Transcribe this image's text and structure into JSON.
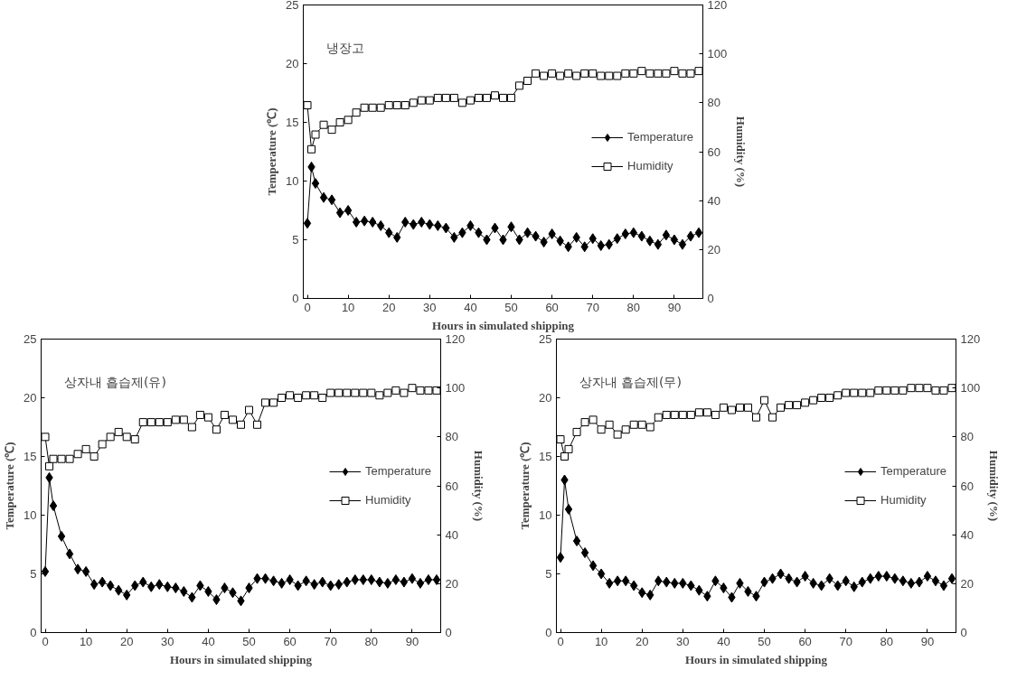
{
  "chart_data": [
    {
      "type": "line",
      "annotations": [
        "냉장고"
      ],
      "xlabel": "Hours in simulated shipping",
      "ylabel": "Temperature (℃)",
      "y2label": "Humidity (%)",
      "x": [
        0,
        1,
        2,
        4,
        6,
        8,
        10,
        12,
        14,
        16,
        18,
        20,
        22,
        24,
        26,
        28,
        30,
        32,
        34,
        36,
        38,
        40,
        42,
        44,
        46,
        48,
        50,
        52,
        54,
        56,
        58,
        60,
        62,
        64,
        66,
        68,
        70,
        72,
        74,
        76,
        78,
        80,
        82,
        84,
        86,
        88,
        90,
        92,
        94,
        96
      ],
      "xlim": [
        -1,
        97
      ],
      "xticks": [
        0,
        10,
        20,
        30,
        40,
        50,
        60,
        70,
        80,
        90
      ],
      "ylim": [
        0,
        25
      ],
      "yticks": [
        0,
        5,
        10,
        15,
        20,
        25
      ],
      "y2lim": [
        0,
        120
      ],
      "y2ticks": [
        0,
        20,
        40,
        60,
        80,
        100,
        120
      ],
      "grid": false,
      "legend": "right",
      "series": [
        {
          "name": "Temperature",
          "color": "#000000",
          "marker": "diamond",
          "values": [
            6.4,
            11.2,
            9.8,
            8.6,
            8.4,
            7.3,
            7.5,
            6.5,
            6.6,
            6.5,
            6.2,
            5.6,
            5.2,
            6.5,
            6.3,
            6.5,
            6.3,
            6.2,
            6.0,
            5.2,
            5.6,
            6.2,
            5.6,
            5.0,
            6.0,
            5.0,
            6.1,
            5.0,
            5.6,
            5.3,
            4.8,
            5.5,
            4.9,
            4.4,
            5.2,
            4.4,
            5.1,
            4.5,
            4.6,
            5.1,
            5.5,
            5.6,
            5.3,
            4.9,
            4.6,
            5.4,
            5.0,
            4.6,
            5.3,
            5.6
          ]
        },
        {
          "name": "Humidity",
          "color": "#000000",
          "marker": "square",
          "axis": "y2",
          "values": [
            79,
            61,
            67,
            71,
            69,
            72,
            73,
            76,
            78,
            78,
            78,
            79,
            79,
            79,
            80,
            81,
            81,
            82,
            82,
            82,
            80,
            81,
            82,
            82,
            83,
            82,
            82,
            87,
            89,
            92,
            91,
            92,
            91,
            92,
            91,
            92,
            92,
            91,
            91,
            91,
            92,
            92,
            93,
            92,
            92,
            92,
            93,
            92,
            92,
            93
          ]
        }
      ]
    },
    {
      "type": "line",
      "annotations": [
        "상자내 흡습제(유)"
      ],
      "xlabel": "Hours in simulated shipping",
      "ylabel": "Temperature (℃)",
      "y2label": "Humidity (%)",
      "x": [
        0,
        1,
        2,
        4,
        6,
        8,
        10,
        12,
        14,
        16,
        18,
        20,
        22,
        24,
        26,
        28,
        30,
        32,
        34,
        36,
        38,
        40,
        42,
        44,
        46,
        48,
        50,
        52,
        54,
        56,
        58,
        60,
        62,
        64,
        66,
        68,
        70,
        72,
        74,
        76,
        78,
        80,
        82,
        84,
        86,
        88,
        90,
        92,
        94,
        96
      ],
      "xlim": [
        -1,
        97
      ],
      "xticks": [
        0,
        10,
        20,
        30,
        40,
        50,
        60,
        70,
        80,
        90
      ],
      "ylim": [
        0,
        25
      ],
      "yticks": [
        0,
        5,
        10,
        15,
        20,
        25
      ],
      "y2lim": [
        0,
        120
      ],
      "y2ticks": [
        0,
        20,
        40,
        60,
        80,
        100,
        120
      ],
      "grid": false,
      "legend": "right",
      "series": [
        {
          "name": "Temperature",
          "color": "#000000",
          "marker": "diamond",
          "values": [
            5.2,
            13.2,
            10.8,
            8.2,
            6.7,
            5.4,
            5.2,
            4.1,
            4.3,
            4.0,
            3.6,
            3.2,
            4.0,
            4.3,
            3.9,
            4.1,
            3.9,
            3.8,
            3.5,
            3.0,
            4.0,
            3.5,
            2.8,
            3.8,
            3.4,
            2.7,
            3.8,
            4.6,
            4.6,
            4.4,
            4.2,
            4.5,
            4.0,
            4.4,
            4.1,
            4.3,
            4.0,
            4.1,
            4.3,
            4.5,
            4.5,
            4.5,
            4.3,
            4.2,
            4.5,
            4.3,
            4.6,
            4.2,
            4.5,
            4.5
          ]
        },
        {
          "name": "Humidity",
          "color": "#000000",
          "marker": "square",
          "axis": "y2",
          "values": [
            80,
            68,
            71,
            71,
            71,
            73,
            75,
            72,
            77,
            80,
            82,
            80,
            79,
            86,
            86,
            86,
            86,
            87,
            87,
            84,
            89,
            88,
            83,
            89,
            87,
            85,
            91,
            85,
            94,
            94,
            96,
            97,
            96,
            97,
            97,
            96,
            98,
            98,
            98,
            98,
            98,
            98,
            97,
            98,
            99,
            98,
            100,
            99,
            99,
            99
          ]
        }
      ]
    },
    {
      "type": "line",
      "annotations": [
        "상자내 흡습제(무)"
      ],
      "xlabel": "Hours in simulated shipping",
      "ylabel": "Temperature (℃)",
      "y2label": "Humidity (%)",
      "x": [
        0,
        1,
        2,
        4,
        6,
        8,
        10,
        12,
        14,
        16,
        18,
        20,
        22,
        24,
        26,
        28,
        30,
        32,
        34,
        36,
        38,
        40,
        42,
        44,
        46,
        48,
        50,
        52,
        54,
        56,
        58,
        60,
        62,
        64,
        66,
        68,
        70,
        72,
        74,
        76,
        78,
        80,
        82,
        84,
        86,
        88,
        90,
        92,
        94,
        96
      ],
      "xlim": [
        -1,
        97
      ],
      "xticks": [
        0,
        10,
        20,
        30,
        40,
        50,
        60,
        70,
        80,
        90
      ],
      "ylim": [
        0,
        25
      ],
      "yticks": [
        0,
        5,
        10,
        15,
        20,
        25
      ],
      "y2lim": [
        0,
        120
      ],
      "y2ticks": [
        0,
        20,
        40,
        60,
        80,
        100,
        120
      ],
      "grid": false,
      "legend": "right",
      "series": [
        {
          "name": "Temperature",
          "color": "#000000",
          "marker": "diamond",
          "values": [
            6.4,
            13.0,
            10.5,
            7.8,
            6.8,
            5.7,
            5.0,
            4.2,
            4.4,
            4.4,
            4.0,
            3.4,
            3.2,
            4.4,
            4.3,
            4.2,
            4.2,
            4.0,
            3.6,
            3.1,
            4.4,
            3.8,
            3.0,
            4.2,
            3.5,
            3.1,
            4.3,
            4.6,
            5.0,
            4.6,
            4.3,
            4.8,
            4.2,
            4.0,
            4.6,
            4.0,
            4.4,
            3.9,
            4.3,
            4.6,
            4.8,
            4.8,
            4.6,
            4.4,
            4.2,
            4.3,
            4.8,
            4.4,
            4.0,
            4.6
          ]
        },
        {
          "name": "Humidity",
          "color": "#000000",
          "marker": "square",
          "axis": "y2",
          "values": [
            79,
            72,
            75,
            82,
            86,
            87,
            83,
            85,
            81,
            83,
            85,
            85,
            84,
            88,
            89,
            89,
            89,
            89,
            90,
            90,
            89,
            92,
            91,
            92,
            92,
            88,
            95,
            88,
            92,
            93,
            93,
            94,
            95,
            96,
            96,
            97,
            98,
            98,
            98,
            98,
            99,
            99,
            99,
            99,
            100,
            100,
            100,
            99,
            99,
            100
          ]
        }
      ]
    }
  ]
}
